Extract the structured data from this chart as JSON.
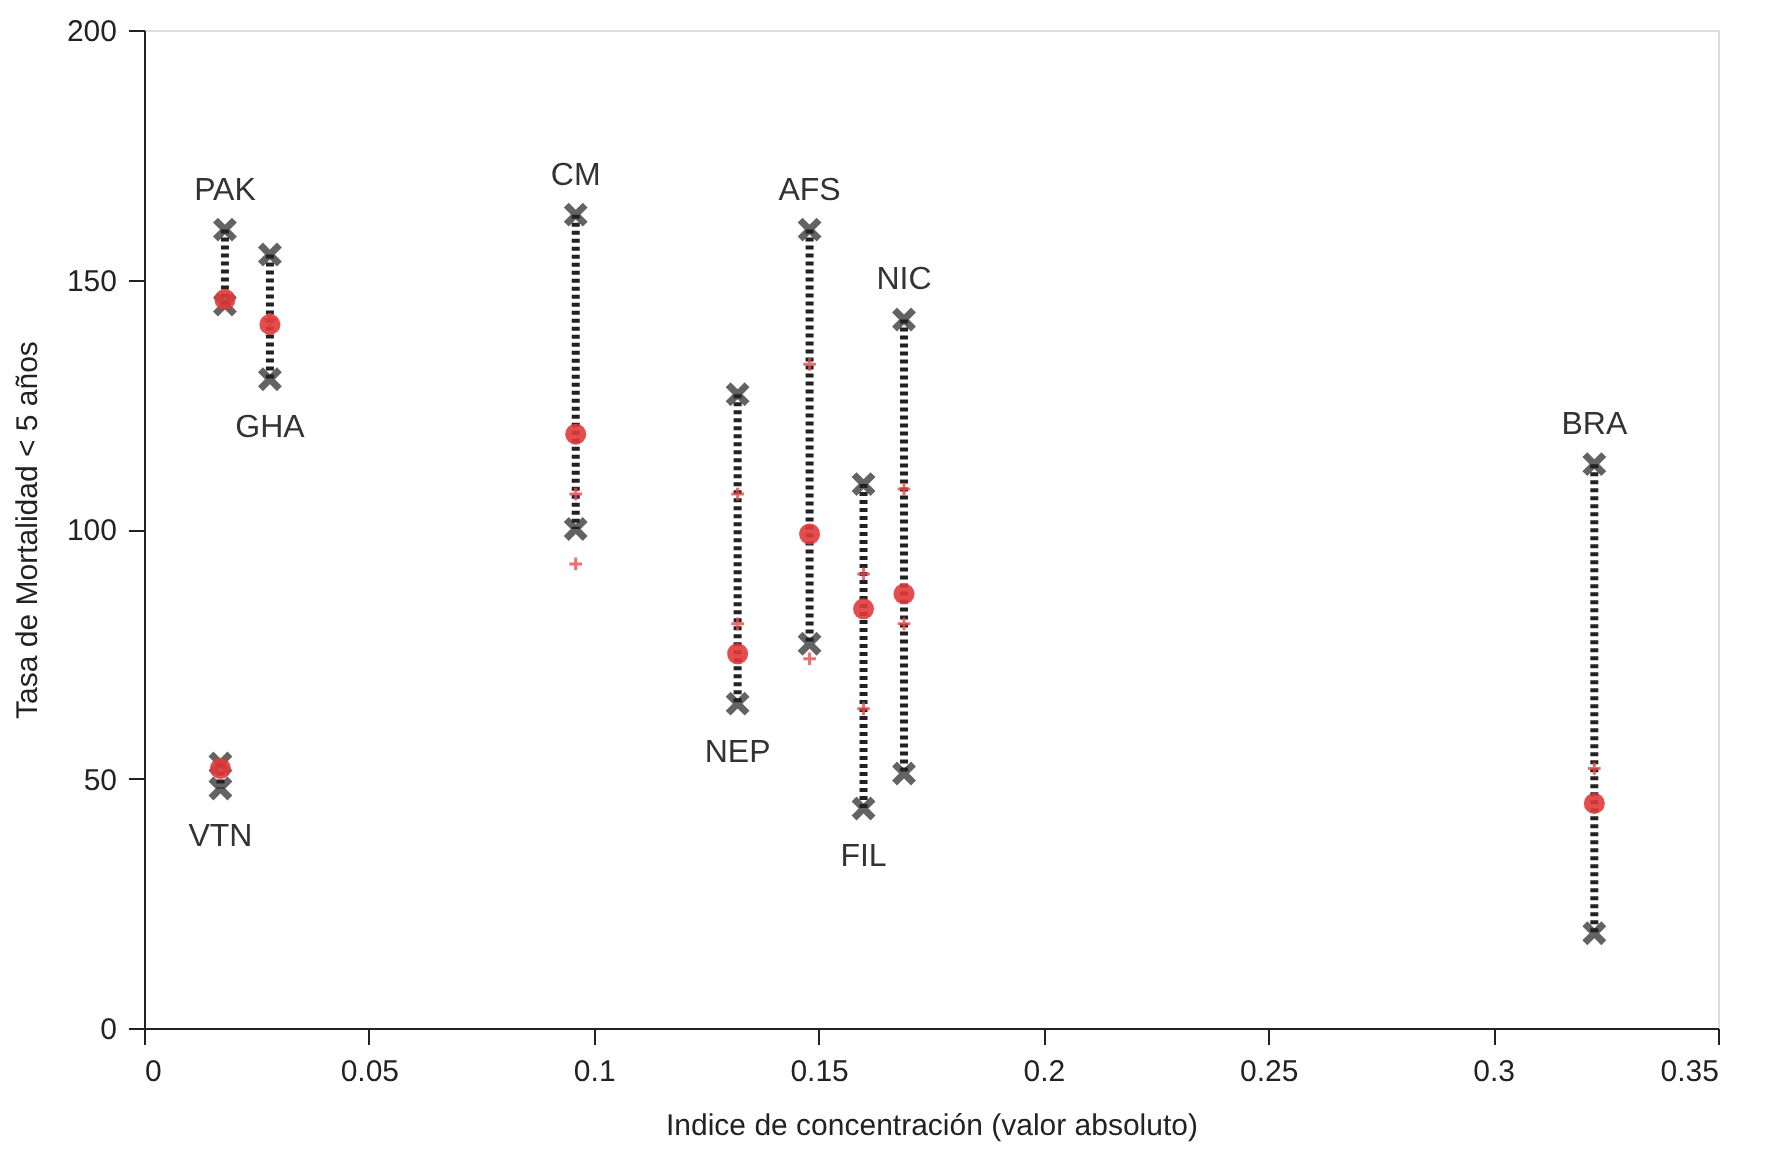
{
  "chart_data": {
    "type": "scatter",
    "xlabel": "Indice de concentración (valor absoluto)",
    "ylabel": "Tasa de Mortalidad < 5 años",
    "xlim": [
      0,
      0.35
    ],
    "xticks": [
      0,
      0.05,
      0.1,
      0.15,
      0.2,
      0.25,
      0.3,
      0.35
    ],
    "ylim": [
      0,
      200
    ],
    "yticks": [
      0,
      50,
      100,
      150,
      200
    ],
    "grid": false,
    "series": [
      {
        "type": "line",
        "color": "#222222",
        "line_style": "dotted",
        "marker": "none",
        "x": [
          0.018,
          0.018
        ],
        "values": [
          160,
          145
        ]
      },
      {
        "type": "line",
        "color": "#222222",
        "line_style": "dotted",
        "marker": "none",
        "x": [
          0.028,
          0.028
        ],
        "values": [
          155,
          130
        ]
      },
      {
        "type": "line",
        "color": "#222222",
        "line_style": "dotted",
        "marker": "none",
        "x": [
          0.017,
          0.017
        ],
        "values": [
          53,
          48
        ]
      },
      {
        "type": "line",
        "color": "#222222",
        "line_style": "dotted",
        "marker": "none",
        "x": [
          0.096,
          0.096
        ],
        "values": [
          163,
          100
        ]
      },
      {
        "type": "line",
        "color": "#222222",
        "line_style": "dotted",
        "marker": "none",
        "x": [
          0.132,
          0.132
        ],
        "values": [
          127,
          65
        ]
      },
      {
        "type": "line",
        "color": "#222222",
        "line_style": "dotted",
        "marker": "none",
        "x": [
          0.148,
          0.148
        ],
        "values": [
          160,
          77
        ]
      },
      {
        "type": "line",
        "color": "#222222",
        "line_style": "dotted",
        "marker": "none",
        "x": [
          0.16,
          0.16
        ],
        "values": [
          109,
          44
        ]
      },
      {
        "type": "line",
        "color": "#222222",
        "line_style": "dotted",
        "marker": "none",
        "x": [
          0.169,
          0.169
        ],
        "values": [
          142,
          51
        ]
      },
      {
        "type": "line",
        "color": "#222222",
        "line_style": "dotted",
        "marker": "none",
        "x": [
          0.3225,
          0.3225
        ],
        "values": [
          113,
          19
        ]
      },
      {
        "color": "#e8494a",
        "marker": "cross",
        "x": [
          0.028,
          0.096,
          0.096,
          0.132,
          0.132,
          0.148,
          0.148,
          0.16,
          0.16,
          0.169,
          0.169,
          0.3225
        ],
        "values": [
          142,
          107,
          93,
          107,
          81,
          133,
          74,
          91,
          64,
          108,
          81,
          52
        ]
      },
      {
        "color": "#222222",
        "marker": "cross",
        "x": [
          0.018,
          0.028,
          0.017,
          0.096,
          0.132,
          0.148,
          0.16,
          0.169,
          0.3225
        ],
        "values": [
          160,
          155,
          53,
          163,
          127,
          160,
          109,
          142,
          113
        ]
      },
      {
        "color": "#222222",
        "marker": "cross",
        "x": [
          0.018,
          0.028,
          0.017,
          0.096,
          0.132,
          0.148,
          0.16,
          0.169,
          0.3225
        ],
        "values": [
          145,
          130,
          48,
          100,
          65,
          77,
          44,
          51,
          19
        ]
      },
      {
        "color": "#e03a3a",
        "marker": "circle",
        "x": [
          0.018,
          0.028,
          0.017,
          0.096,
          0.132,
          0.148,
          0.16,
          0.169,
          0.3225
        ],
        "values": [
          146,
          141,
          52,
          119,
          75,
          99,
          84,
          87,
          45
        ]
      }
    ],
    "annotations": [
      {
        "text": "PAK",
        "x": 0.018,
        "y": 160
      },
      {
        "text": "GHA",
        "x": 0.028,
        "y": 130
      },
      {
        "text": "VTN",
        "x": 0.017,
        "y": 48
      },
      {
        "text": "CM",
        "x": 0.096,
        "y": 163
      },
      {
        "text": "AFS",
        "x": 0.148,
        "y": 160
      },
      {
        "text": "NIC",
        "x": 0.169,
        "y": 142
      },
      {
        "text": "NEP",
        "x": 0.132,
        "y": 65
      },
      {
        "text": "FIL",
        "x": 0.16,
        "y": 44
      },
      {
        "text": "BRA",
        "x": 0.3225,
        "y": 113
      }
    ]
  }
}
